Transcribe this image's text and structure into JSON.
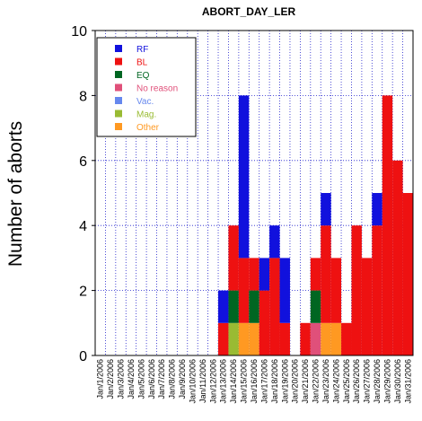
{
  "chart_data": {
    "type": "bar",
    "stacked": true,
    "title": "ABORT_DAY_LER",
    "xlabel": "",
    "ylabel": "Number of aborts",
    "ylim": [
      0,
      10
    ],
    "yticks": [
      0,
      2,
      4,
      6,
      8,
      10
    ],
    "grid": true,
    "legend_position": "top-left",
    "categories": [
      "Jan/1/2006",
      "Jan/2/2006",
      "Jan/3/2006",
      "Jan/4/2006",
      "Jan/5/2006",
      "Jan/6/2006",
      "Jan/7/2006",
      "Jan/8/2006",
      "Jan/9/2006",
      "Jan/10/2006",
      "Jan/11/2006",
      "Jan/12/2006",
      "Jan/13/2006",
      "Jan/14/2006",
      "Jan/15/2006",
      "Jan/16/2006",
      "Jan/17/2006",
      "Jan/18/2006",
      "Jan/19/2006",
      "Jan/20/2006",
      "Jan/21/2006",
      "Jan/22/2006",
      "Jan/23/2006",
      "Jan/24/2006",
      "Jan/25/2006",
      "Jan/26/2006",
      "Jan/27/2006",
      "Jan/28/2006",
      "Jan/29/2006",
      "Jan/30/2006",
      "Jan/31/2006"
    ],
    "series": [
      {
        "name": "No reason",
        "color": "#e0507a",
        "values": [
          0,
          0,
          0,
          0,
          0,
          0,
          0,
          0,
          0,
          0,
          0,
          0,
          0,
          0,
          0,
          0,
          0,
          0,
          0,
          0,
          0,
          1,
          0,
          0,
          0,
          0,
          0,
          0,
          0,
          0,
          0
        ]
      },
      {
        "name": "Mag.",
        "color": "#99bb33",
        "values": [
          0,
          0,
          0,
          0,
          0,
          0,
          0,
          0,
          0,
          0,
          0,
          0,
          0,
          1,
          0,
          0,
          0,
          0,
          0,
          0,
          0,
          0,
          0,
          0,
          0,
          0,
          0,
          0,
          0,
          0,
          0
        ]
      },
      {
        "name": "Other",
        "color": "#ff9922",
        "values": [
          0,
          0,
          0,
          0,
          0,
          0,
          0,
          0,
          0,
          0,
          0,
          0,
          0,
          0,
          1,
          1,
          0,
          0,
          0,
          0,
          0,
          0,
          1,
          1,
          0,
          0,
          0,
          0,
          0,
          0,
          0
        ]
      },
      {
        "name": "EQ",
        "color": "#006622",
        "values": [
          0,
          0,
          0,
          0,
          0,
          0,
          0,
          0,
          0,
          0,
          0,
          0,
          0,
          1,
          0,
          1,
          0,
          0,
          0,
          0,
          0,
          1,
          0,
          0,
          0,
          0,
          0,
          0,
          0,
          0,
          0
        ]
      },
      {
        "name": "BL",
        "color": "#ee1111",
        "values": [
          0,
          0,
          0,
          0,
          0,
          0,
          0,
          0,
          0,
          0,
          0,
          0,
          1,
          2,
          2,
          1,
          2,
          3,
          1,
          0,
          1,
          1,
          3,
          2,
          1,
          4,
          3,
          4,
          8,
          6,
          5
        ]
      },
      {
        "name": "RF",
        "color": "#1111dd",
        "values": [
          0,
          0,
          0,
          0,
          0,
          0,
          0,
          0,
          0,
          0,
          0,
          0,
          1,
          0,
          5,
          0,
          1,
          1,
          2,
          0,
          0,
          0,
          1,
          0,
          0,
          0,
          0,
          1,
          0,
          0,
          0
        ]
      },
      {
        "name": "Vac.",
        "color": "#6688ee",
        "values": [
          0,
          0,
          0,
          0,
          0,
          0,
          0,
          0,
          0,
          0,
          0,
          0,
          0,
          0,
          0,
          0,
          0,
          0,
          0,
          0,
          0,
          0,
          0,
          0,
          0,
          0,
          0,
          0,
          0,
          0,
          0
        ]
      }
    ],
    "legend": [
      "RF",
      "BL",
      "EQ",
      "No reason",
      "Vac.",
      "Mag.",
      "Other"
    ]
  }
}
